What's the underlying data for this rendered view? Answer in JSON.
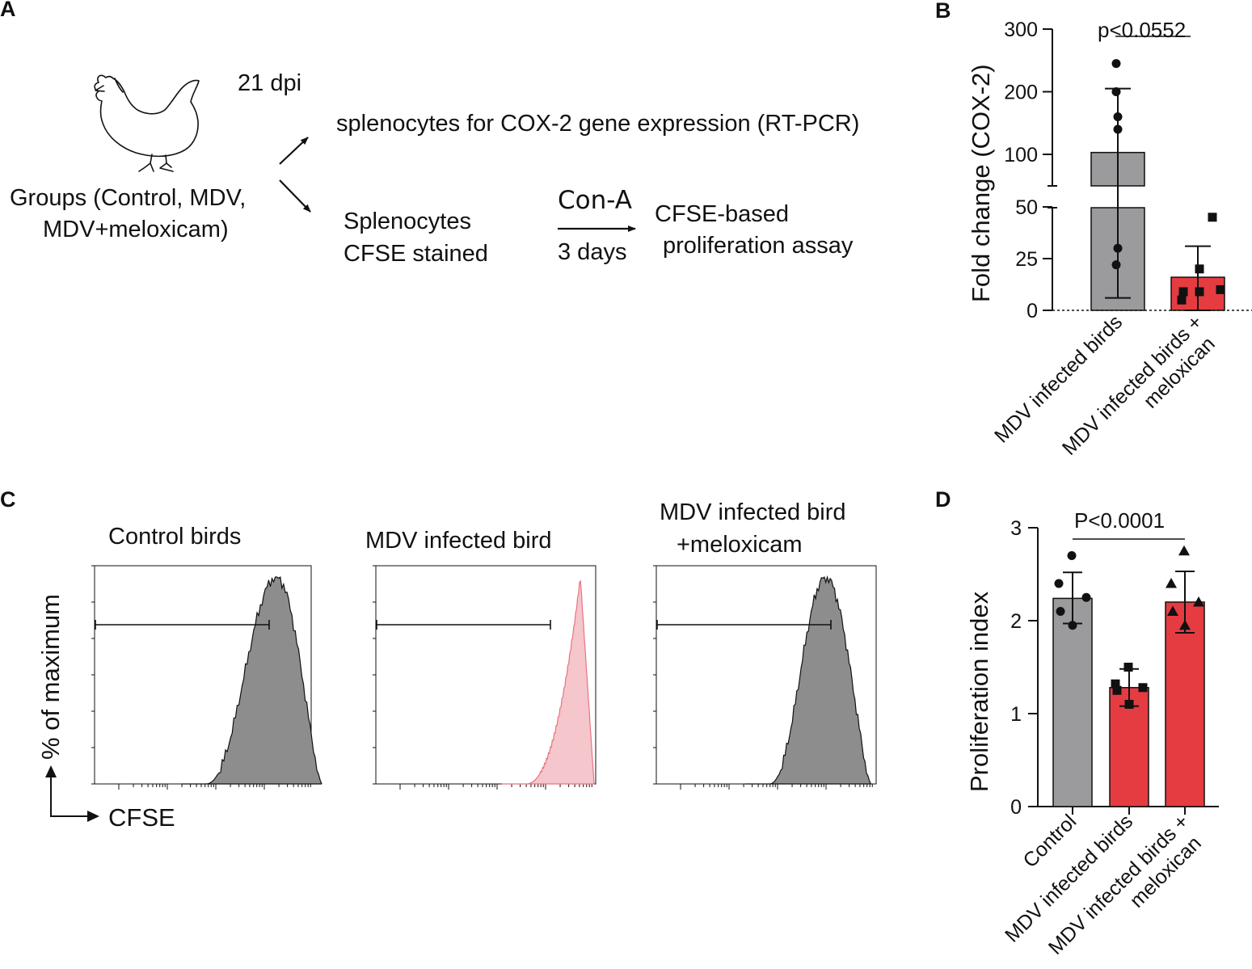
{
  "panels": {
    "A": "A",
    "B": "B",
    "C": "C",
    "D": "D"
  },
  "panel_a": {
    "dpi": "21 dpi",
    "groups_line1": "Groups (Control, MDV,",
    "groups_line2": "MDV+meloxicam)",
    "top_branch": "splenocytes for COX-2 gene expression (RT-PCR)",
    "splenocytes_line1": "Splenocytes",
    "splenocytes_line2": "CFSE stained",
    "stimulus": "Con-A",
    "duration": "3 days",
    "assay_line1": "CFSE-based",
    "assay_line2": "proliferation assay",
    "colors": {
      "ink": "#111111"
    },
    "icons": [
      "chicken-icon",
      "arrow-up-right-icon",
      "arrow-down-right-icon",
      "arrow-right-icon"
    ]
  },
  "panel_c": {
    "titles": [
      "Control birds",
      "MDV infected bird",
      "MDV infected bird",
      "+meloxicam"
    ],
    "ylabel": "% of maximum",
    "xlabel": "CFSE",
    "histogram_colors": [
      "#8d8d8d",
      "#f5c6cb",
      "#8d8d8d"
    ],
    "outline_colors": [
      "#111111",
      "#e8737f",
      "#111111"
    ],
    "gate": "proliferated-cells-gate"
  },
  "chart_data": [
    {
      "panel": "B",
      "type": "bar",
      "title": "",
      "xlabel": "",
      "ylabel": "Fold change (COX-2)",
      "categories": [
        "MDV infected birds",
        "MDV infected birds +\nmeloxican"
      ],
      "category_lines": [
        [
          "MDV infected birds"
        ],
        [
          "MDV infected birds +",
          "meloxican"
        ]
      ],
      "values": [
        103,
        16
      ],
      "error": [
        [
          6,
          205
        ],
        [
          0,
          31
        ]
      ],
      "points": [
        [
          245,
          200,
          160,
          140,
          30,
          22
        ],
        [
          45,
          20,
          10,
          9,
          9,
          5
        ]
      ],
      "markers": [
        "circle",
        "square"
      ],
      "colors": [
        "#9b9b9e",
        "#e53c42"
      ],
      "ylim": [
        0,
        300
      ],
      "axis_break": [
        50,
        100
      ],
      "yticks": [
        0,
        25,
        50,
        100,
        200,
        300
      ],
      "annotation": "p<0.0552"
    },
    {
      "panel": "D",
      "type": "bar",
      "title": "",
      "xlabel": "",
      "ylabel": "Proliferation index",
      "categories": [
        "Control",
        "MDV infected birds",
        "MDV infected birds +\nmeloxican"
      ],
      "category_lines": [
        [
          "Control"
        ],
        [
          "MDV infected birds"
        ],
        [
          "MDV infected birds +",
          "meloxican"
        ]
      ],
      "values": [
        2.24,
        1.28,
        2.2
      ],
      "error": [
        [
          1.97,
          2.52
        ],
        [
          1.08,
          1.48
        ],
        [
          1.87,
          2.53
        ]
      ],
      "points": [
        [
          2.7,
          2.4,
          2.25,
          2.1,
          1.95
        ],
        [
          1.5,
          1.32,
          1.28,
          1.25,
          1.1
        ],
        [
          2.75,
          2.4,
          2.2,
          2.1,
          1.95
        ]
      ],
      "markers": [
        "circle",
        "square",
        "triangle"
      ],
      "colors": [
        "#9b9b9e",
        "#e53c42",
        "#e53c42"
      ],
      "ylim": [
        0,
        3
      ],
      "yticks": [
        0,
        1,
        2,
        3
      ],
      "annotation": "P<0.0001"
    }
  ]
}
